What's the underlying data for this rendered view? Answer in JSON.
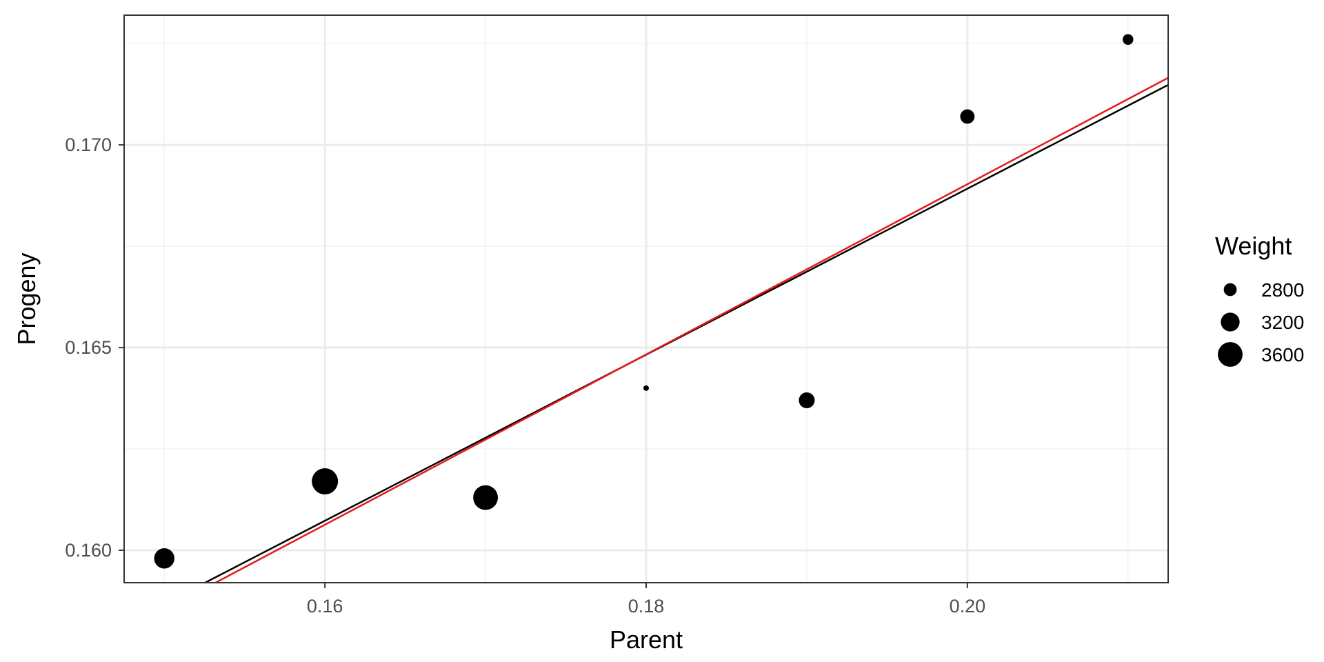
{
  "chart_data": {
    "type": "scatter",
    "xlabel": "Parent",
    "ylabel": "Progeny",
    "xlim": [
      0.1475,
      0.2125
    ],
    "ylim": [
      0.1592,
      0.1732
    ],
    "x_ticks": [
      0.16,
      0.18,
      0.2
    ],
    "x_tick_labels": [
      "0.16",
      "0.18",
      "0.20"
    ],
    "x_minor_ticks": [
      0.15,
      0.17,
      0.19,
      0.21
    ],
    "y_ticks": [
      0.16,
      0.165,
      0.17
    ],
    "y_tick_labels": [
      "0.160",
      "0.165",
      "0.170"
    ],
    "y_minor_ticks": [
      0.1625,
      0.1675,
      0.1725
    ],
    "grid": true,
    "points": [
      {
        "x": 0.15,
        "y": 0.1598,
        "weight": 3300
      },
      {
        "x": 0.16,
        "y": 0.1617,
        "weight": 3700
      },
      {
        "x": 0.17,
        "y": 0.1613,
        "weight": 3600
      },
      {
        "x": 0.18,
        "y": 0.164,
        "weight": 2300
      },
      {
        "x": 0.19,
        "y": 0.1637,
        "weight": 3000
      },
      {
        "x": 0.2,
        "y": 0.1707,
        "weight": 2900
      },
      {
        "x": 0.21,
        "y": 0.1726,
        "weight": 2650
      }
    ],
    "lines": [
      {
        "color": "#000000",
        "intercept": 0.12796,
        "slope": 0.2048
      },
      {
        "color": "#e41a1c",
        "intercept": 0.12703,
        "slope": 0.21
      }
    ],
    "size_legend": {
      "title": "Weight",
      "placement": "right",
      "entries": [
        {
          "label": "2800",
          "value": 2800
        },
        {
          "label": "3200",
          "value": 3200
        },
        {
          "label": "3600",
          "value": 3600
        }
      ]
    },
    "colors": {
      "points": "#000000",
      "panel_border": "#333333",
      "grid_major": "#ebebeb",
      "grid_minor": "#f3f3f3"
    }
  }
}
